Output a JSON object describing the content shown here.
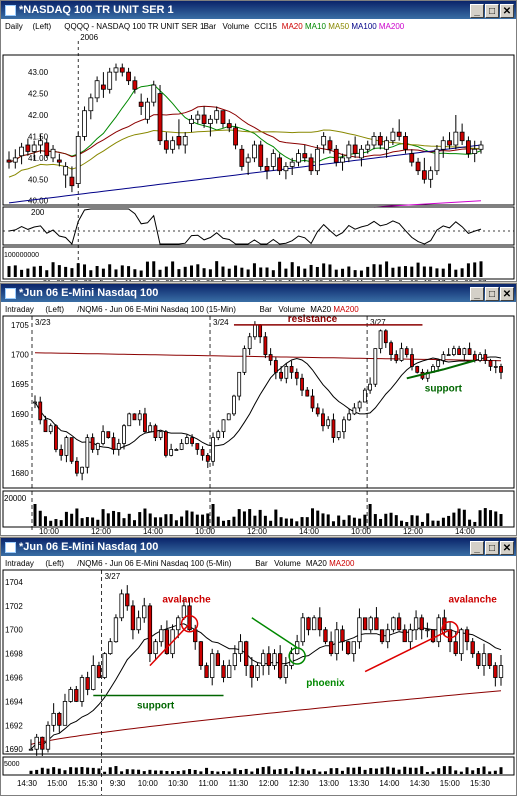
{
  "windows": [
    {
      "title": "*NASDAQ 100 TR UNIT SER 1",
      "legend": [
        {
          "text": "Daily",
          "color": "#000"
        },
        {
          "text": "(Left)",
          "color": "#000"
        },
        {
          "text": "QQQQ - NASDAQ 100 TR UNIT SER 1",
          "color": "#000"
        },
        {
          "text": "Bar",
          "color": "#000"
        },
        {
          "text": "Volume",
          "color": "#000"
        },
        {
          "text": "CCI15",
          "color": "#000"
        },
        {
          "text": "MA20",
          "color": "#cc0000"
        },
        {
          "text": "MA10",
          "color": "#008800"
        },
        {
          "text": "MA50",
          "color": "#888800"
        },
        {
          "text": "MA100",
          "color": "#000088"
        },
        {
          "text": "MA200",
          "color": "#cc00cc"
        }
      ],
      "marker_label": "2006",
      "price_ticks": [
        "43.00",
        "42.50",
        "42.00",
        "41.50",
        "41.00",
        "40.50",
        "40.00"
      ],
      "cci_tick": "200",
      "volume_tick": "100000000",
      "x_ticks": [
        "21",
        "23",
        "28",
        "30",
        "5",
        "9",
        "11",
        "13",
        "18",
        "20",
        "24",
        "26",
        "30",
        "F",
        "3",
        "7",
        "9",
        "13",
        "15",
        "17",
        "22",
        "24",
        "28",
        "M",
        "3",
        "7",
        "9",
        "13",
        "15",
        "17",
        "21",
        "23",
        "27"
      ]
    },
    {
      "title": "*Jun 06  E-Mini Nasdaq 100",
      "legend": [
        {
          "text": "Intraday",
          "color": "#000"
        },
        {
          "text": "(Left)",
          "color": "#000"
        },
        {
          "text": "/NQM6 - Jun 06 E-Mini Nasdaq 100 (15-Min)",
          "color": "#000"
        },
        {
          "text": "Bar",
          "color": "#000"
        },
        {
          "text": "Volume",
          "color": "#000"
        },
        {
          "text": "MA20",
          "color": "#000"
        },
        {
          "text": "MA200",
          "color": "#cc0000"
        }
      ],
      "date_labels": [
        "3/23",
        "3/24",
        "3/27"
      ],
      "annotations": {
        "resistance": "resistance",
        "support": "support"
      },
      "price_ticks": [
        "1705",
        "1700",
        "1695",
        "1690",
        "1685",
        "1680"
      ],
      "volume_tick": "20000",
      "x_ticks": [
        "10:00",
        "12:00",
        "14:00",
        "10:00",
        "12:00",
        "14:00",
        "10:00",
        "12:00",
        "14:00"
      ]
    },
    {
      "title": "*Jun 06  E-Mini Nasdaq 100",
      "legend": [
        {
          "text": "Intraday",
          "color": "#000"
        },
        {
          "text": "(Left)",
          "color": "#000"
        },
        {
          "text": "/NQM6 - Jun 06 E-Mini Nasdaq 100 (5-Min)",
          "color": "#000"
        },
        {
          "text": "Bar",
          "color": "#000"
        },
        {
          "text": "Volume",
          "color": "#000"
        },
        {
          "text": "MA20",
          "color": "#000"
        },
        {
          "text": "MA200",
          "color": "#cc0000"
        }
      ],
      "date_labels": [
        "3/27"
      ],
      "annotations": {
        "avalanche1": "avalanche",
        "support": "support",
        "phoenix": "phoenix",
        "avalanche2": "avalanche"
      },
      "price_ticks": [
        "1704",
        "1702",
        "1700",
        "1698",
        "1696",
        "1694",
        "1692",
        "1690"
      ],
      "volume_tick": "5000",
      "x_ticks": [
        "14:30",
        "15:00",
        "15:30",
        "9:30",
        "10:00",
        "10:30",
        "11:00",
        "11:30",
        "12:00",
        "12:30",
        "13:00",
        "13:30",
        "14:00",
        "14:30",
        "15:00",
        "15:30"
      ]
    }
  ],
  "window_buttons": {
    "minimize": "_",
    "maximize": "□",
    "close": "✕"
  },
  "colors": {
    "up": "#ffffff",
    "down": "#cc0000",
    "ma20": "#8b0000",
    "ma10": "#008800",
    "ma50": "#888800",
    "ma100": "#000088",
    "ma200": "#cc00cc",
    "support": "#006600",
    "resistance": "#8b0000"
  },
  "chart_data": [
    {
      "type": "candlestick",
      "title": "NASDAQ 100 TR UNIT SER 1 (QQQQ) Daily",
      "ylim": [
        39.9,
        43.4
      ],
      "ohlc": [
        [
          40.95,
          41.15,
          40.75,
          40.9
        ],
        [
          40.9,
          41.2,
          40.75,
          41.0
        ],
        [
          41.05,
          41.35,
          40.85,
          41.25
        ],
        [
          41.3,
          41.45,
          41.05,
          41.15
        ],
        [
          41.15,
          41.4,
          40.95,
          41.3
        ],
        [
          41.3,
          41.55,
          41.1,
          41.4
        ],
        [
          41.35,
          41.45,
          41.0,
          41.05
        ],
        [
          41.0,
          41.3,
          40.9,
          41.2
        ],
        [
          40.95,
          41.1,
          40.8,
          40.9
        ],
        [
          40.6,
          40.9,
          40.3,
          40.8
        ],
        [
          40.55,
          40.8,
          40.2,
          40.35
        ],
        [
          40.4,
          41.6,
          40.3,
          41.5
        ],
        [
          41.5,
          42.2,
          41.4,
          42.1
        ],
        [
          42.1,
          42.5,
          41.9,
          42.4
        ],
        [
          42.4,
          42.9,
          42.3,
          42.8
        ],
        [
          42.7,
          43.0,
          42.4,
          42.6
        ],
        [
          42.6,
          43.1,
          42.5,
          43.0
        ],
        [
          43.0,
          43.2,
          42.8,
          43.1
        ],
        [
          43.1,
          43.2,
          42.9,
          43.0
        ],
        [
          43.0,
          43.1,
          42.7,
          42.8
        ],
        [
          42.8,
          42.9,
          42.5,
          42.6
        ],
        [
          42.3,
          42.5,
          42.0,
          42.2
        ],
        [
          41.9,
          42.4,
          41.8,
          42.3
        ],
        [
          42.3,
          42.8,
          42.2,
          42.7
        ],
        [
          42.5,
          42.7,
          41.3,
          41.4
        ],
        [
          41.4,
          41.6,
          41.1,
          41.2
        ],
        [
          41.2,
          41.5,
          41.1,
          41.4
        ],
        [
          41.5,
          41.9,
          41.2,
          41.3
        ],
        [
          41.3,
          41.6,
          41.1,
          41.5
        ],
        [
          41.8,
          42.0,
          41.6,
          41.9
        ],
        [
          41.9,
          42.1,
          41.8,
          42.0
        ],
        [
          42.0,
          42.2,
          41.7,
          41.8
        ],
        [
          41.8,
          42.0,
          41.5,
          41.9
        ],
        [
          41.9,
          42.2,
          41.8,
          42.1
        ],
        [
          42.1,
          42.1,
          41.7,
          41.8
        ],
        [
          41.8,
          41.9,
          41.6,
          41.7
        ],
        [
          41.7,
          41.8,
          41.2,
          41.3
        ],
        [
          41.2,
          41.3,
          40.7,
          40.8
        ],
        [
          40.9,
          41.1,
          40.6,
          41.0
        ],
        [
          41.0,
          41.4,
          40.9,
          41.3
        ],
        [
          41.3,
          41.4,
          40.7,
          40.8
        ],
        [
          40.8,
          41.0,
          40.5,
          40.7
        ],
        [
          40.8,
          41.2,
          40.7,
          41.1
        ],
        [
          41.0,
          41.1,
          40.6,
          40.7
        ],
        [
          40.7,
          40.9,
          40.5,
          40.8
        ],
        [
          40.8,
          41.0,
          40.6,
          40.9
        ],
        [
          40.9,
          41.2,
          40.8,
          41.1
        ],
        [
          41.1,
          41.3,
          40.9,
          41.0
        ],
        [
          41.0,
          41.1,
          40.6,
          40.7
        ],
        [
          40.7,
          41.3,
          40.6,
          41.2
        ],
        [
          41.3,
          41.6,
          41.1,
          41.5
        ],
        [
          41.4,
          41.5,
          41.1,
          41.2
        ],
        [
          41.2,
          41.3,
          40.8,
          40.9
        ],
        [
          40.9,
          41.1,
          40.7,
          41.0
        ],
        [
          41.0,
          41.4,
          40.9,
          41.3
        ],
        [
          41.3,
          41.5,
          41.0,
          41.1
        ],
        [
          41.0,
          41.3,
          40.8,
          41.2
        ],
        [
          41.2,
          41.4,
          41.1,
          41.3
        ],
        [
          41.3,
          41.6,
          41.2,
          41.5
        ],
        [
          41.5,
          41.6,
          41.2,
          41.3
        ],
        [
          41.2,
          41.5,
          41.0,
          41.4
        ],
        [
          41.4,
          41.7,
          41.3,
          41.6
        ],
        [
          41.6,
          41.9,
          41.4,
          41.5
        ],
        [
          41.5,
          41.6,
          41.1,
          41.2
        ],
        [
          41.1,
          41.2,
          40.8,
          40.9
        ],
        [
          40.9,
          41.0,
          40.6,
          40.7
        ],
        [
          40.7,
          41.0,
          40.4,
          40.5
        ],
        [
          40.5,
          40.8,
          40.3,
          40.7
        ],
        [
          40.7,
          41.3,
          40.6,
          41.2
        ],
        [
          41.2,
          41.5,
          41.0,
          41.4
        ],
        [
          41.4,
          41.6,
          41.2,
          41.3
        ],
        [
          41.3,
          42.0,
          41.2,
          41.6
        ],
        [
          41.6,
          41.8,
          41.3,
          41.4
        ],
        [
          41.4,
          41.5,
          41.0,
          41.1
        ],
        [
          41.1,
          41.4,
          40.9,
          41.2
        ],
        [
          41.2,
          41.4,
          41.1,
          41.3
        ]
      ]
    },
    {
      "type": "candlestick",
      "title": "Jun 06 E-Mini Nasdaq 100 (15-Min)",
      "ylim": [
        1677.5,
        1706.5
      ],
      "closes": [
        1692,
        1689,
        1687,
        1688,
        1684,
        1683,
        1686,
        1682,
        1680,
        1681,
        1686,
        1684,
        1685,
        1687,
        1686,
        1684,
        1685,
        1688,
        1690,
        1689,
        1690,
        1687,
        1688,
        1686,
        1687,
        1683,
        1684,
        1684,
        1685,
        1686,
        1685,
        1684,
        1683,
        1682,
        1686,
        1687,
        1689,
        1690,
        1693,
        1697,
        1701,
        1703,
        1705,
        1703,
        1700,
        1699,
        1697,
        1696,
        1698,
        1697,
        1696,
        1694,
        1693,
        1691,
        1690,
        1688,
        1689,
        1686,
        1687,
        1689,
        1690,
        1691,
        1692,
        1694,
        1695,
        1701,
        1704,
        1702,
        1700,
        1699,
        1701,
        1700,
        1698,
        1697,
        1696,
        1697,
        1698,
        1699,
        1700,
        1700,
        1701,
        1700,
        1701,
        1700,
        1699,
        1700,
        1699,
        1698,
        1698,
        1697
      ]
    },
    {
      "type": "candlestick",
      "title": "Jun 06 E-Mini Nasdaq 100 (5-Min)",
      "ylim": [
        1689.6,
        1705
      ],
      "closes": [
        1690,
        1691,
        1690,
        1692,
        1693,
        1692,
        1694,
        1695,
        1694,
        1696,
        1695,
        1697,
        1696,
        1698,
        1699,
        1701,
        1703,
        1702,
        1700,
        1701,
        1702,
        1698,
        1699,
        1700,
        1698,
        1700,
        1701,
        1702,
        1700,
        1699,
        1697,
        1696,
        1698,
        1697,
        1696,
        1697,
        1698,
        1699,
        1697,
        1696,
        1697,
        1698,
        1697,
        1698,
        1696,
        1697,
        1698,
        1699,
        1701,
        1700,
        1701,
        1700,
        1699,
        1698,
        1700,
        1699,
        1698,
        1699,
        1701,
        1700,
        1701,
        1700,
        1699,
        1700,
        1701,
        1700,
        1699,
        1700,
        1701,
        1700,
        1700,
        1699,
        1701,
        1700,
        1699,
        1698,
        1700,
        1699,
        1698,
        1697,
        1698,
        1697,
        1696,
        1697
      ],
      "ma200_range": [
        1690.4,
        1694.9
      ]
    }
  ]
}
